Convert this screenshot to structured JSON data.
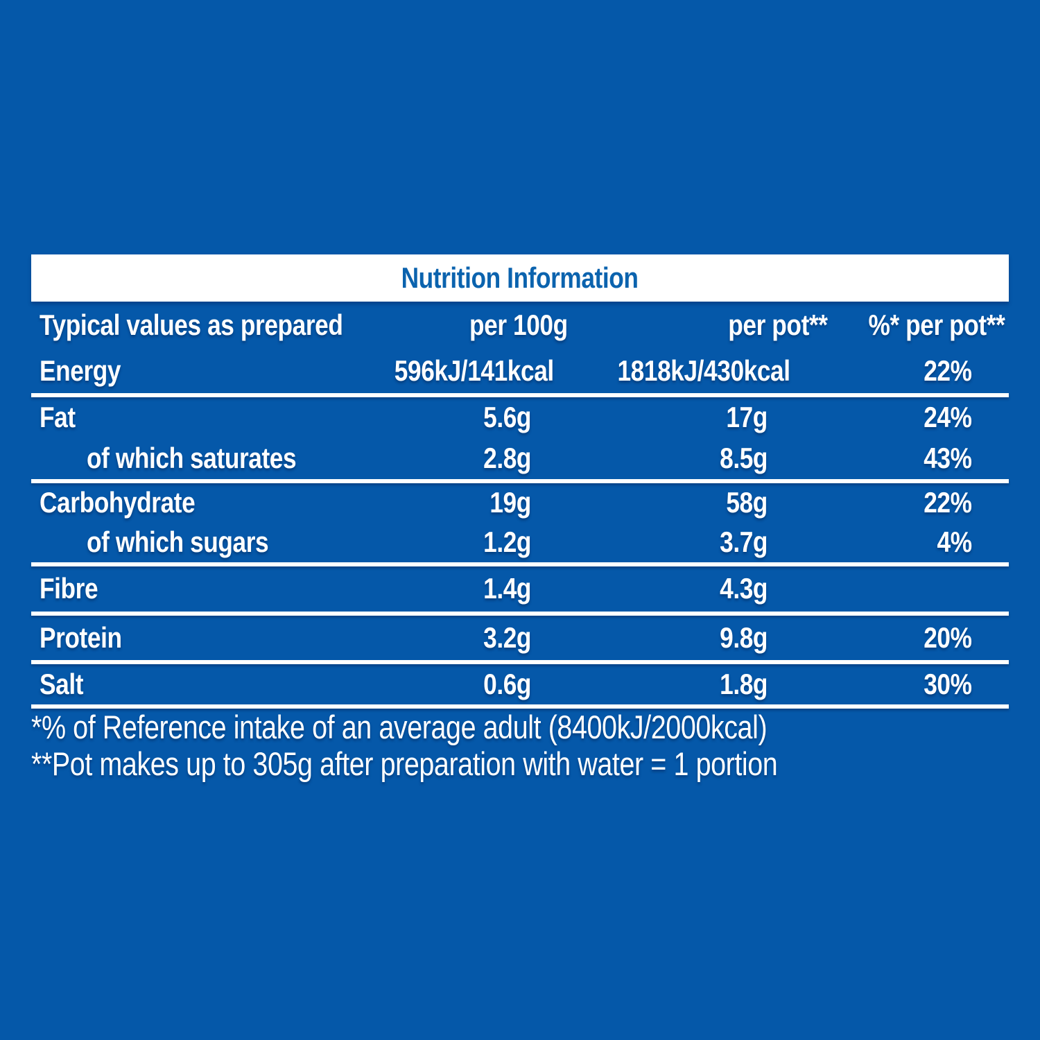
{
  "colors": {
    "bg": "#0558A9",
    "band-bg": "#FFFFFF",
    "title-blue": "#0B63AE",
    "txt": "#FFFFFF",
    "line": "#FFFFFF"
  },
  "table": {
    "title": "Nutrition Information",
    "header": {
      "col1": "Typical values as prepared",
      "col2": "per 100g",
      "col3": "per pot**",
      "col4": "%* per pot**"
    },
    "rows": [
      {
        "label": "Energy",
        "per_100g": "596kJ/141kcal",
        "per_pot": "1818kJ/430kcal",
        "pct_per_pot": "22%"
      },
      {
        "label": "Fat",
        "per_100g": "5.6g",
        "per_pot": "17g",
        "pct_per_pot": "24%"
      },
      {
        "label": "of which saturates",
        "per_100g": "2.8g",
        "per_pot": "8.5g",
        "pct_per_pot": "43%"
      },
      {
        "label": "Carbohydrate",
        "per_100g": "19g",
        "per_pot": "58g",
        "pct_per_pot": "22%"
      },
      {
        "label": "of which sugars",
        "per_100g": "1.2g",
        "per_pot": "3.7g",
        "pct_per_pot": "4%"
      },
      {
        "label": "Fibre",
        "per_100g": "1.4g",
        "per_pot": "4.3g",
        "pct_per_pot": ""
      },
      {
        "label": "Protein",
        "per_100g": "3.2g",
        "per_pot": "9.8g",
        "pct_per_pot": "20%"
      },
      {
        "label": "Salt",
        "per_100g": "0.6g",
        "per_pot": "1.8g",
        "pct_per_pot": "30%"
      }
    ],
    "footnotes": [
      "*% of Reference intake of an average adult (8400kJ/2000kcal)",
      "**Pot makes up to 305g after preparation with water = 1 portion"
    ]
  }
}
